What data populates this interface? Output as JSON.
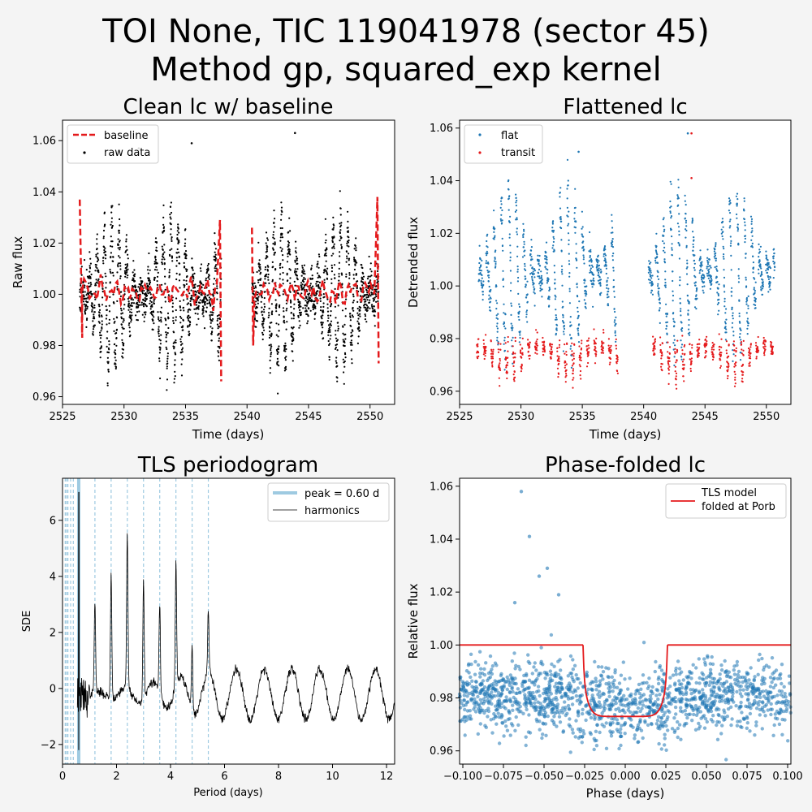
{
  "figure": {
    "title_line1": "TOI None, TIC 119041978 (sector 45)",
    "title_line2": "Method gp, squared_exp kernel"
  },
  "colors": {
    "background": "#f4f4f4",
    "baseline": "#e41a1c",
    "raw": "#000000",
    "flat": "#1f77b4",
    "transit": "#e41a1c",
    "tls_peak": "#9ecae1",
    "harmonics": "#000000",
    "phase_points": "#1f77b4",
    "tls_model": "#e41a1c"
  },
  "chart_data": [
    {
      "id": "clean_lc",
      "type": "scatter",
      "title": "Clean lc w/ baseline",
      "xlabel": "Time (days)",
      "ylabel": "Raw flux",
      "xlim": [
        2525,
        2552
      ],
      "ylim": [
        0.957,
        1.068
      ],
      "xticks": [
        2525,
        2530,
        2535,
        2540,
        2545,
        2550
      ],
      "yticks": [
        0.96,
        0.98,
        1.0,
        1.02,
        1.04,
        1.06
      ],
      "ytick_labels": [
        "0.96",
        "0.98",
        "1.00",
        "1.02",
        "1.04",
        "1.06"
      ],
      "legend": {
        "position": "top-left",
        "entries": [
          "baseline",
          "raw data"
        ]
      },
      "segments": [
        [
          2526.4,
          2537.9
        ],
        [
          2540.4,
          2550.7
        ]
      ],
      "raw_data": {
        "name": "raw data",
        "center": 1.0,
        "amplitude_max": 0.035,
        "outliers": [
          [
            2531.2,
            1.057
          ],
          [
            2535.5,
            1.059
          ],
          [
            2543.9,
            1.063
          ]
        ]
      },
      "baseline": {
        "name": "baseline",
        "level": 1.001,
        "wiggle": 0.004,
        "edge_points": [
          [
            2526.4,
            1.037
          ],
          [
            2526.6,
            0.983
          ],
          [
            2537.8,
            1.029
          ],
          [
            2537.9,
            0.966
          ],
          [
            2540.4,
            1.026
          ],
          [
            2540.5,
            0.98
          ],
          [
            2550.6,
            1.038
          ],
          [
            2550.7,
            0.973
          ]
        ]
      },
      "grid": false
    },
    {
      "id": "flattened_lc",
      "type": "scatter",
      "title": "Flattened lc",
      "xlabel": "Time (days)",
      "ylabel": "Detrended flux",
      "xlim": [
        2525,
        2552
      ],
      "ylim": [
        0.955,
        1.063
      ],
      "xticks": [
        2525,
        2530,
        2535,
        2540,
        2545,
        2550
      ],
      "yticks": [
        0.96,
        0.98,
        1.0,
        1.02,
        1.04,
        1.06
      ],
      "ytick_labels": [
        "0.96",
        "0.98",
        "1.00",
        "1.02",
        "1.04",
        "1.06"
      ],
      "legend": {
        "position": "top-left",
        "entries": [
          "flat",
          "transit"
        ]
      },
      "segments": [
        [
          2526.4,
          2537.9
        ],
        [
          2540.4,
          2550.7
        ]
      ],
      "flat": {
        "name": "flat",
        "center": 1.005,
        "amplitude_max": 0.036,
        "outliers": [
          [
            2534.7,
            1.051
          ],
          [
            2543.6,
            1.058
          ]
        ]
      },
      "transit": {
        "name": "transit",
        "center": 0.978,
        "amplitude_max": 0.016,
        "outliers": [
          [
            2543.9,
            1.058
          ],
          [
            2543.9,
            1.041
          ]
        ]
      },
      "grid": false
    },
    {
      "id": "tls_periodogram",
      "type": "line",
      "title": "TLS periodogram",
      "xlabel": "Period (days)",
      "ylabel": "SDE",
      "xlim": [
        0,
        12.3
      ],
      "ylim": [
        -2.7,
        7.5
      ],
      "xticks": [
        0,
        2,
        4,
        6,
        8,
        10,
        12
      ],
      "yticks": [
        -2,
        0,
        2,
        4,
        6
      ],
      "ytick_labels": [
        "−2",
        "0",
        "2",
        "4",
        "6"
      ],
      "legend": {
        "position": "top-right",
        "entries": [
          "peak = 0.60 d",
          "harmonics"
        ]
      },
      "peak_period": 0.6,
      "peak_sde": 7.0,
      "harmonic_periods": [
        0.1,
        0.15,
        0.2,
        0.3,
        0.4,
        1.2,
        1.8,
        2.4,
        3.0,
        3.6,
        4.2,
        4.8,
        5.4
      ],
      "harmonic_peaks": [
        [
          1.2,
          3.3
        ],
        [
          1.8,
          4.4
        ],
        [
          2.4,
          5.5
        ],
        [
          3.0,
          4.2
        ],
        [
          3.6,
          3.3
        ],
        [
          4.2,
          4.4
        ],
        [
          4.8,
          2.3
        ],
        [
          5.4,
          2.2
        ]
      ],
      "grid": false
    },
    {
      "id": "phase_folded",
      "type": "scatter",
      "title": "Phase-folded lc",
      "xlabel": "Phase (days)",
      "ylabel": "Relative flux",
      "xlim": [
        -0.102,
        0.102
      ],
      "ylim": [
        0.955,
        1.063
      ],
      "xticks": [
        -0.1,
        -0.075,
        -0.05,
        -0.025,
        0.0,
        0.025,
        0.05,
        0.075,
        0.1
      ],
      "xtick_labels": [
        "−0.100",
        "−0.075",
        "−0.050",
        "−0.025",
        "0.000",
        "0.025",
        "0.050",
        "0.075",
        "0.100"
      ],
      "yticks": [
        0.96,
        0.98,
        1.0,
        1.02,
        1.04,
        1.06
      ],
      "ytick_labels": [
        "0.96",
        "0.98",
        "1.00",
        "1.02",
        "1.04",
        "1.06"
      ],
      "legend": {
        "position": "top-right",
        "entries": [
          "TLS model\nfolded at Porb"
        ]
      },
      "model": {
        "baseline": 1.0,
        "depth_min": 0.973,
        "ingress": -0.026,
        "egress": 0.026
      },
      "points_center": 0.981,
      "outliers": [
        [
          -0.064,
          1.058
        ],
        [
          -0.059,
          1.041
        ],
        [
          -0.053,
          1.026
        ],
        [
          -0.048,
          1.029
        ],
        [
          -0.041,
          1.019
        ],
        [
          -0.068,
          1.016
        ]
      ],
      "grid": false
    }
  ]
}
